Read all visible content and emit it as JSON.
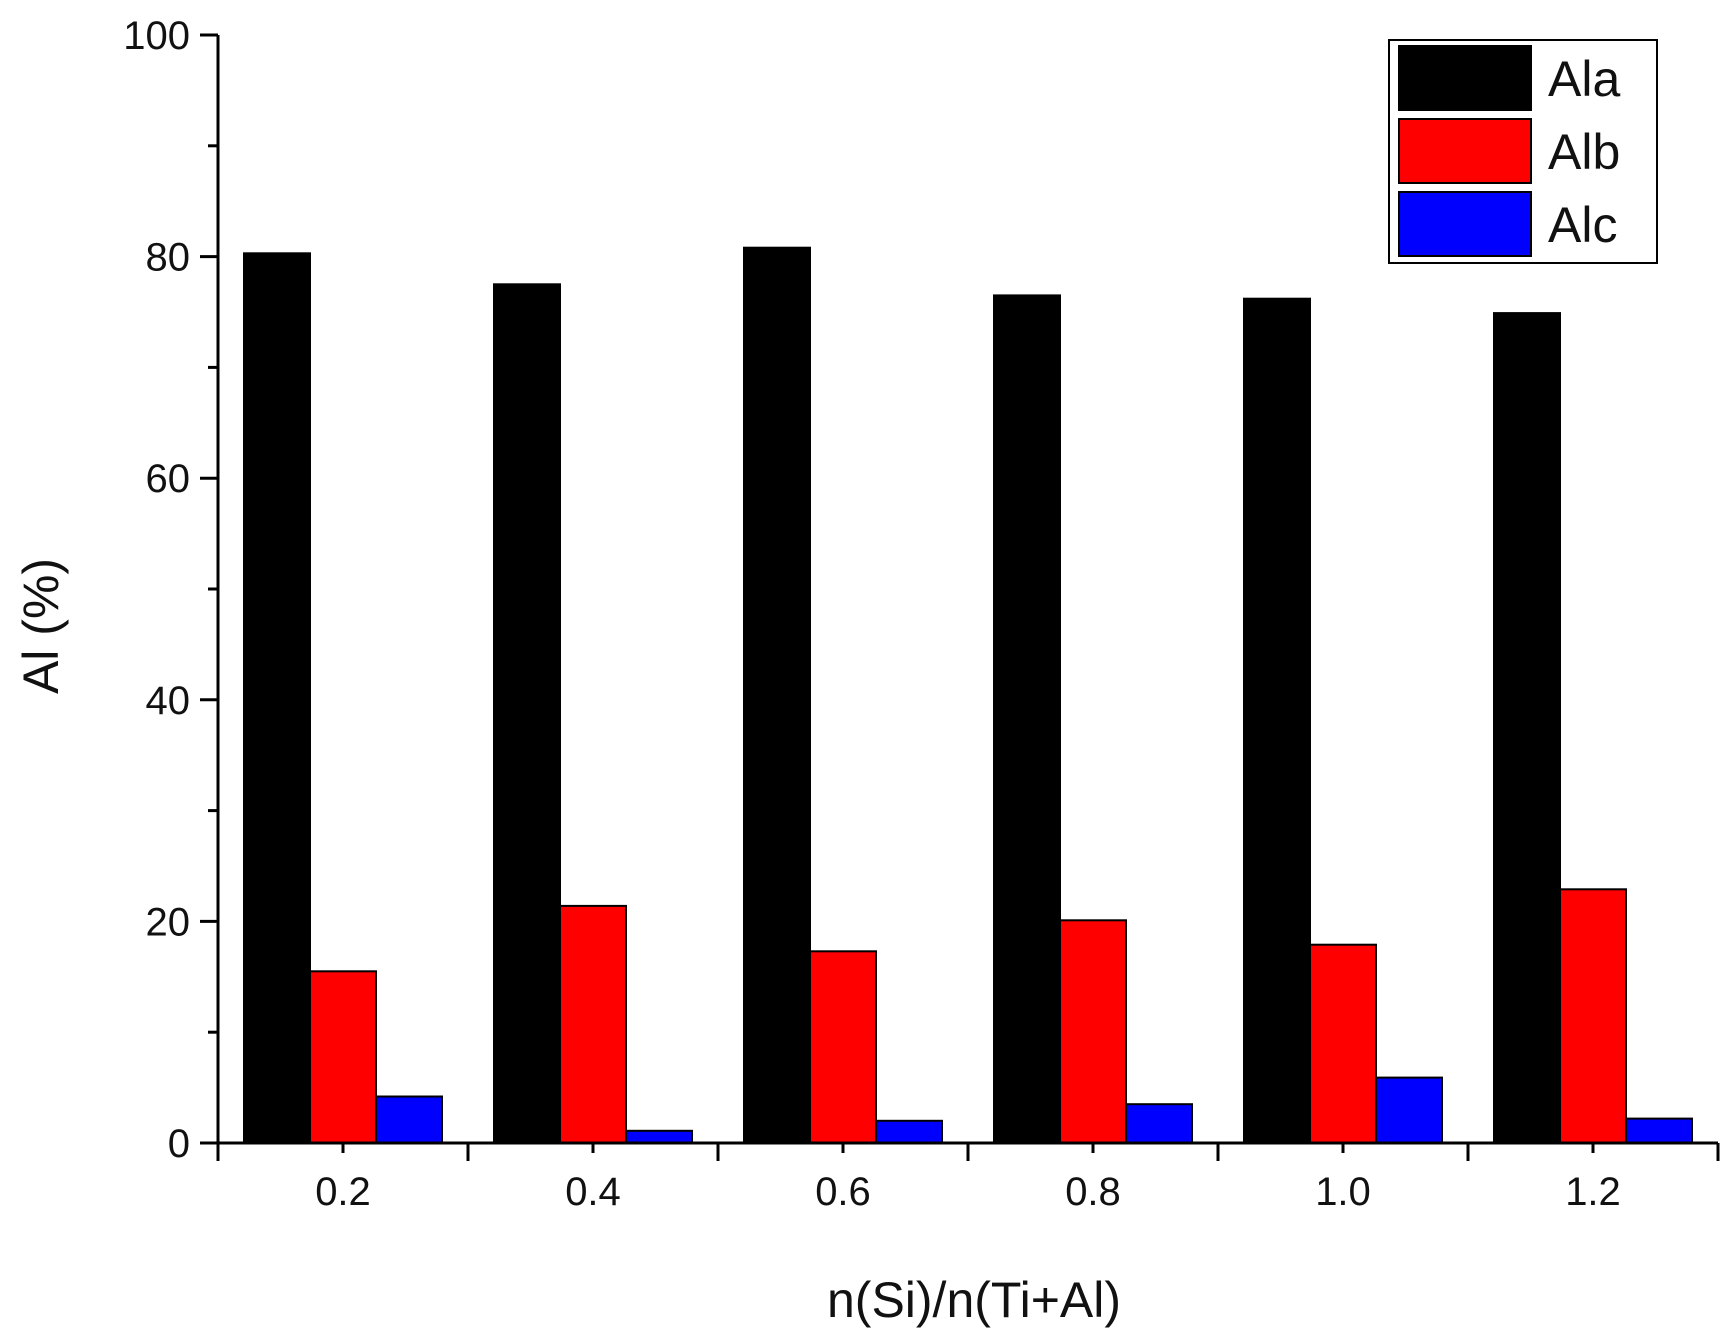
{
  "chart_data": {
    "type": "bar",
    "title": "",
    "xlabel": "n(Si)/n(Ti+Al)",
    "ylabel": "Al (%)",
    "categories": [
      "0.2",
      "0.4",
      "0.6",
      "0.8",
      "1.0",
      "1.2"
    ],
    "ylim": [
      0,
      100
    ],
    "yticks": [
      0,
      20,
      40,
      60,
      80,
      100
    ],
    "yticklabels": [
      "0",
      "20",
      "40",
      "60",
      "80",
      "100"
    ],
    "grid": false,
    "legend_position": "top-right",
    "series": [
      {
        "name": "Ala",
        "color": "#000000",
        "values": [
          80.3,
          77.5,
          80.8,
          76.5,
          76.2,
          74.9
        ]
      },
      {
        "name": "Alb",
        "color": "#ff0000",
        "values": [
          15.5,
          21.4,
          17.3,
          20.1,
          17.9,
          22.9
        ]
      },
      {
        "name": "Alc",
        "color": "#0000ff",
        "values": [
          4.2,
          1.1,
          2.0,
          3.5,
          5.9,
          2.2
        ]
      }
    ]
  }
}
